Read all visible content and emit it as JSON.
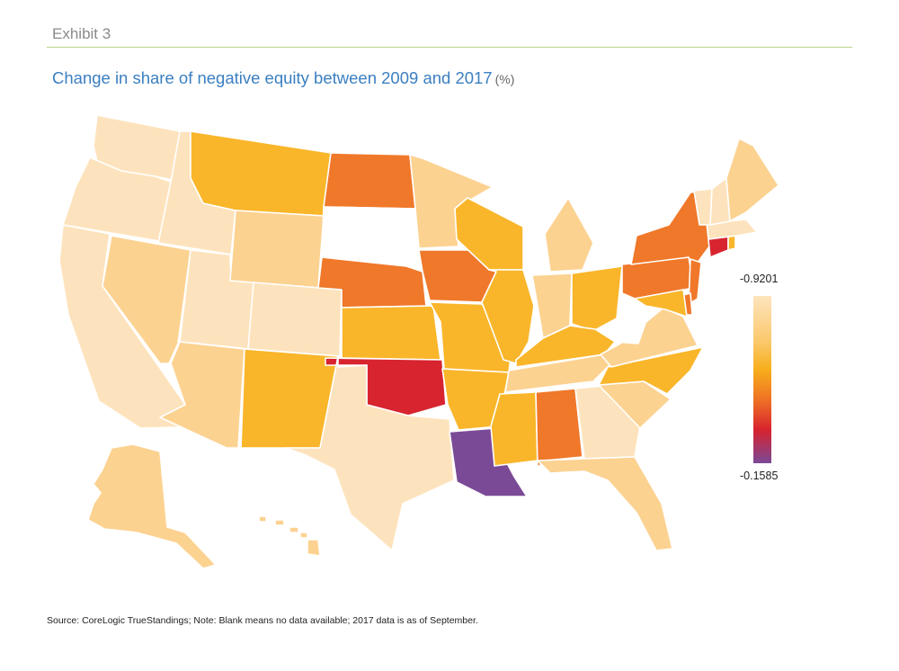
{
  "header": {
    "exhibit": "Exhibit 3",
    "title": "Change in share of negative equity between 2009 and 2017",
    "unit": "(%)"
  },
  "legend": {
    "max_label": "-0.9201",
    "min_label": "-0.1585",
    "color_scale": [
      "#fde4bd",
      "#fbc869",
      "#f7ae1b",
      "#ef7225",
      "#d7232e",
      "#7b4897"
    ]
  },
  "footer": {
    "source": "Source: CoreLogic TrueStandings; Note: Blank means no data available; 2017 data is as of September."
  },
  "palette": {
    "lightest": "#fde3bd",
    "light": "#fcd291",
    "orange_yellow": "#f9b62a",
    "dark_orange": "#f0782a",
    "red": "#d7242f",
    "purple": "#7b4a97",
    "no_data": "#ffffff",
    "border": "#ffffff"
  },
  "states": [
    {
      "id": "WA",
      "fill": "lightest"
    },
    {
      "id": "OR",
      "fill": "lightest"
    },
    {
      "id": "CA",
      "fill": "lightest"
    },
    {
      "id": "ID",
      "fill": "lightest"
    },
    {
      "id": "NV",
      "fill": "light"
    },
    {
      "id": "UT",
      "fill": "lightest"
    },
    {
      "id": "AZ",
      "fill": "light"
    },
    {
      "id": "MT",
      "fill": "orange_yellow"
    },
    {
      "id": "WY",
      "fill": "light"
    },
    {
      "id": "CO",
      "fill": "lightest"
    },
    {
      "id": "NM",
      "fill": "orange_yellow"
    },
    {
      "id": "ND",
      "fill": "dark_orange"
    },
    {
      "id": "SD",
      "fill": "no_data"
    },
    {
      "id": "NE",
      "fill": "dark_orange"
    },
    {
      "id": "KS",
      "fill": "orange_yellow"
    },
    {
      "id": "OK",
      "fill": "red"
    },
    {
      "id": "TX",
      "fill": "lightest"
    },
    {
      "id": "MN",
      "fill": "light"
    },
    {
      "id": "IA",
      "fill": "dark_orange"
    },
    {
      "id": "MO",
      "fill": "orange_yellow"
    },
    {
      "id": "AR",
      "fill": "orange_yellow"
    },
    {
      "id": "LA",
      "fill": "purple"
    },
    {
      "id": "WI",
      "fill": "orange_yellow"
    },
    {
      "id": "IL",
      "fill": "orange_yellow"
    },
    {
      "id": "MI",
      "fill": "light"
    },
    {
      "id": "IN",
      "fill": "light"
    },
    {
      "id": "OH",
      "fill": "orange_yellow"
    },
    {
      "id": "KY",
      "fill": "orange_yellow"
    },
    {
      "id": "TN",
      "fill": "light"
    },
    {
      "id": "MS",
      "fill": "orange_yellow"
    },
    {
      "id": "AL",
      "fill": "dark_orange"
    },
    {
      "id": "GA",
      "fill": "lightest"
    },
    {
      "id": "FL",
      "fill": "light"
    },
    {
      "id": "SC",
      "fill": "light"
    },
    {
      "id": "NC",
      "fill": "orange_yellow"
    },
    {
      "id": "VA",
      "fill": "light"
    },
    {
      "id": "WV",
      "fill": "no_data"
    },
    {
      "id": "PA",
      "fill": "dark_orange"
    },
    {
      "id": "NY",
      "fill": "dark_orange"
    },
    {
      "id": "NJ",
      "fill": "dark_orange"
    },
    {
      "id": "DE",
      "fill": "dark_orange"
    },
    {
      "id": "MD",
      "fill": "orange_yellow"
    },
    {
      "id": "CT",
      "fill": "red"
    },
    {
      "id": "RI",
      "fill": "orange_yellow"
    },
    {
      "id": "MA",
      "fill": "lightest"
    },
    {
      "id": "VT",
      "fill": "lightest"
    },
    {
      "id": "NH",
      "fill": "lightest"
    },
    {
      "id": "ME",
      "fill": "light"
    },
    {
      "id": "AK",
      "fill": "light"
    },
    {
      "id": "HI",
      "fill": "light"
    }
  ]
}
